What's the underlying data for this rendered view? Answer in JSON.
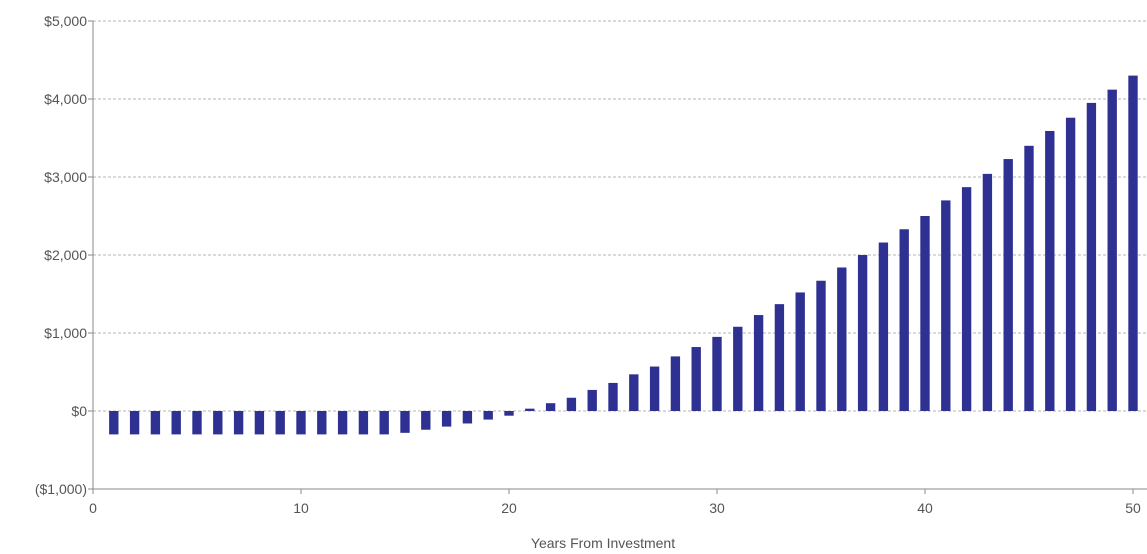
{
  "chart_data": {
    "type": "bar",
    "xlabel": "Years From Investment",
    "ylabel": "",
    "xlim": [
      0,
      50
    ],
    "ylim": [
      -1000,
      5000
    ],
    "x_ticks": [
      0,
      10,
      20,
      30,
      40,
      50
    ],
    "x_tick_labels": [
      "0",
      "10",
      "20",
      "30",
      "40",
      "50"
    ],
    "y_ticks": [
      -1000,
      0,
      1000,
      2000,
      3000,
      4000,
      5000
    ],
    "y_tick_labels": [
      "($1,000)",
      "$0",
      "$1,000",
      "$2,000",
      "$3,000",
      "$4,000",
      "$5,000"
    ],
    "grid": true,
    "bar_color": "#2e3192",
    "x": [
      1,
      2,
      3,
      4,
      5,
      6,
      7,
      8,
      9,
      10,
      11,
      12,
      13,
      14,
      15,
      16,
      17,
      18,
      19,
      20,
      21,
      22,
      23,
      24,
      25,
      26,
      27,
      28,
      29,
      30,
      31,
      32,
      33,
      34,
      35,
      36,
      37,
      38,
      39,
      40,
      41,
      42,
      43,
      44,
      45,
      46,
      47,
      48,
      49,
      50
    ],
    "values": [
      -300,
      -300,
      -300,
      -300,
      -300,
      -300,
      -300,
      -300,
      -300,
      -300,
      -300,
      -300,
      -300,
      -300,
      -280,
      -240,
      -200,
      -160,
      -110,
      -60,
      30,
      100,
      170,
      270,
      360,
      470,
      570,
      700,
      820,
      950,
      1080,
      1230,
      1370,
      1520,
      1670,
      1840,
      2000,
      2160,
      2330,
      2500,
      2700,
      2870,
      3040,
      3230,
      3400,
      3590,
      3760,
      3950,
      4120,
      4300
    ]
  }
}
